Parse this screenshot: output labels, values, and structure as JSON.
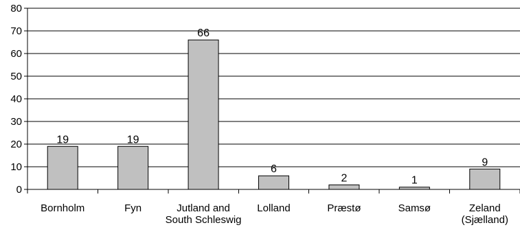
{
  "chart_data": {
    "type": "bar",
    "title": "",
    "xlabel": "",
    "ylabel": "",
    "categories": [
      [
        "Bornholm"
      ],
      [
        "Fyn"
      ],
      [
        "Jutland and",
        "South Schleswig"
      ],
      [
        "Lolland"
      ],
      [
        "Præstø"
      ],
      [
        "Samsø"
      ],
      [
        "Zeland",
        "(Sjælland)"
      ]
    ],
    "values": [
      19,
      19,
      66,
      6,
      2,
      1,
      9
    ],
    "data_labels": [
      "19",
      "19",
      "66",
      "6",
      "2",
      "1",
      "9"
    ],
    "ylim": [
      0,
      80
    ],
    "yticks": [
      0,
      10,
      20,
      30,
      40,
      50,
      60,
      70,
      80
    ],
    "grid": true,
    "legend": "none",
    "colors": {
      "bar_fill": "#c0c0c0",
      "bar_stroke": "#000000",
      "grid": "#000000"
    }
  }
}
